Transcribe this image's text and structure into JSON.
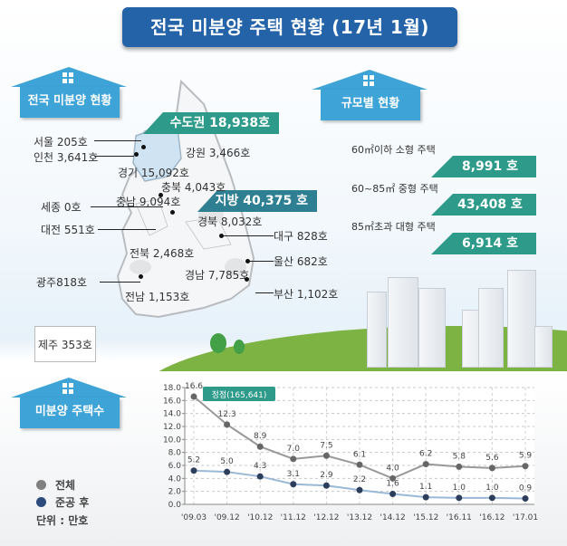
{
  "title": "전국 미분양 주택 현황 (17년 1월)",
  "sections": {
    "national": "전국 미분양 현황",
    "by_size": "규모별 현황",
    "count": "미분양 주택수"
  },
  "map": {
    "capital_banner": "수도권 18,938호",
    "local_banner": "지방 40,375 호",
    "regions": [
      {
        "name": "서울",
        "label": "서울 205호"
      },
      {
        "name": "인천",
        "label": "인천 3,641호"
      },
      {
        "name": "경기",
        "label": "경기 15,092호"
      },
      {
        "name": "강원",
        "label": "강원 3,466호"
      },
      {
        "name": "충북",
        "label": "충북 4,043호"
      },
      {
        "name": "세종",
        "label": "세종 0호"
      },
      {
        "name": "충남",
        "label": "충남 9,094호"
      },
      {
        "name": "대전",
        "label": "대전 551호"
      },
      {
        "name": "경북",
        "label": "경북 8,032호"
      },
      {
        "name": "대구",
        "label": "대구 828호"
      },
      {
        "name": "전북",
        "label": "전북 2,468호"
      },
      {
        "name": "울산",
        "label": "울산 682호"
      },
      {
        "name": "광주",
        "label": "광주818호"
      },
      {
        "name": "경남",
        "label": "경남 7,785호"
      },
      {
        "name": "부산",
        "label": "부산 1,102호"
      },
      {
        "name": "전남",
        "label": "전남 1,153호"
      },
      {
        "name": "제주",
        "label": "제주 353호"
      }
    ]
  },
  "size_breakdown": [
    {
      "label": "60㎡이하 소형 주택",
      "value": "8,991 호"
    },
    {
      "label": "60~85㎡ 중형 주택",
      "value": "43,408 호"
    },
    {
      "label": "85㎡초과 대형 주택",
      "value": "6,914 호"
    }
  ],
  "legend": {
    "total": "전체",
    "completed": "준공 후",
    "unit": "단위 : 만호",
    "total_color": "#808080",
    "completed_color": "#2c4a7c"
  },
  "chart_data": {
    "type": "line",
    "title": "미분양 주택수",
    "xlabel": "",
    "ylabel": "단위 : 만호",
    "ylim": [
      0,
      18
    ],
    "yticks": [
      "0.0",
      "2.0",
      "4.0",
      "6.0",
      "8.0",
      "10.0",
      "12.0",
      "14.0",
      "16.0",
      "18.0"
    ],
    "grid": true,
    "legend_position": "left",
    "categories": [
      "'09.03",
      "'09.12",
      "'10.12",
      "'11.12",
      "'12.12",
      "'13.12",
      "'14.12",
      "'15.12",
      "'16.11",
      "'16.12",
      "'17.01"
    ],
    "series": [
      {
        "name": "전체",
        "color": "#808080",
        "values": [
          16.6,
          12.3,
          8.9,
          7.0,
          7.5,
          6.1,
          4.0,
          6.2,
          5.8,
          5.6,
          5.9
        ]
      },
      {
        "name": "준공 후",
        "color": "#2c4a7c",
        "values": [
          5.2,
          5.0,
          4.3,
          3.1,
          2.9,
          2.2,
          1.6,
          1.1,
          1.0,
          1.0,
          0.9
        ]
      }
    ],
    "annotations": [
      {
        "text": "정점(165,641)",
        "category": "'09.03",
        "series": "전체"
      }
    ]
  }
}
